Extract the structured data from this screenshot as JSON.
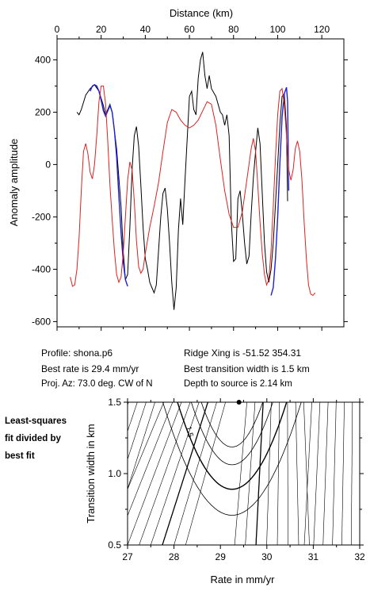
{
  "top_chart": {
    "chart_data": {
      "type": "line",
      "xlabel": "Distance (km)",
      "ylabel": "Anomaly amplitude",
      "xlim": [
        0,
        130
      ],
      "ylim": [
        -620,
        480
      ],
      "x_ticks": [
        0,
        20,
        40,
        60,
        80,
        100,
        120
      ],
      "y_ticks": [
        -600,
        -400,
        -200,
        0,
        200,
        400
      ],
      "x_axis_position": "top",
      "grid": false,
      "series": [
        {
          "color": "#000000",
          "points": [
            [
              9,
              200
            ],
            [
              10,
              190
            ],
            [
              11,
              210
            ],
            [
              13,
              265
            ],
            [
              15,
              290
            ],
            [
              17,
              305
            ],
            [
              19,
              280
            ],
            [
              21,
              225
            ],
            [
              22,
              190
            ],
            [
              23,
              210
            ],
            [
              24,
              230
            ],
            [
              25,
              200
            ],
            [
              27,
              60
            ],
            [
              29,
              -160
            ],
            [
              30,
              -330
            ],
            [
              31,
              -440
            ],
            [
              32,
              -420
            ],
            [
              33,
              -240
            ],
            [
              34,
              -20
            ],
            [
              35,
              110
            ],
            [
              36,
              145
            ],
            [
              37,
              70
            ],
            [
              38,
              -80
            ],
            [
              39,
              -240
            ],
            [
              40,
              -360
            ],
            [
              41,
              -400
            ],
            [
              42,
              -450
            ],
            [
              43,
              -470
            ],
            [
              44,
              -490
            ],
            [
              45,
              -460
            ],
            [
              46,
              -330
            ],
            [
              47,
              -200
            ],
            [
              48,
              -110
            ],
            [
              49,
              -90
            ],
            [
              50,
              -170
            ],
            [
              51,
              -300
            ],
            [
              52,
              -450
            ],
            [
              53,
              -555
            ],
            [
              54,
              -470
            ],
            [
              55,
              -250
            ],
            [
              56,
              -130
            ],
            [
              57,
              -230
            ],
            [
              58,
              -60
            ],
            [
              59,
              100
            ],
            [
              60,
              260
            ],
            [
              61,
              280
            ],
            [
              62,
              210
            ],
            [
              63,
              190
            ],
            [
              64,
              330
            ],
            [
              65,
              400
            ],
            [
              66,
              430
            ],
            [
              67,
              340
            ],
            [
              68,
              290
            ],
            [
              69,
              340
            ],
            [
              70,
              290
            ],
            [
              72,
              260
            ],
            [
              74,
              200
            ],
            [
              75,
              190
            ],
            [
              76,
              150
            ],
            [
              77,
              190
            ],
            [
              78,
              110
            ],
            [
              79,
              -220
            ],
            [
              80,
              -370
            ],
            [
              81,
              -360
            ],
            [
              82,
              -130
            ],
            [
              83,
              -100
            ],
            [
              84,
              -190
            ],
            [
              85,
              -300
            ],
            [
              86,
              -380
            ],
            [
              87,
              -350
            ],
            [
              88,
              -190
            ],
            [
              89,
              -50
            ],
            [
              90,
              50
            ],
            [
              91,
              140
            ],
            [
              92,
              80
            ],
            [
              93,
              -110
            ],
            [
              94,
              -300
            ],
            [
              95,
              -410
            ],
            [
              96,
              -450
            ],
            [
              97,
              -400
            ],
            [
              98,
              -300
            ],
            [
              99,
              -150
            ],
            [
              100,
              0
            ],
            [
              101,
              150
            ],
            [
              102,
              260
            ],
            [
              103,
              270
            ],
            [
              104,
              140
            ],
            [
              104.5,
              -140
            ]
          ]
        },
        {
          "color": "#1f1fd8",
          "points": [
            [
              15,
              280
            ],
            [
              16,
              300
            ],
            [
              17,
              305
            ],
            [
              18,
              300
            ],
            [
              19,
              280
            ],
            [
              20,
              245
            ],
            [
              21,
              205
            ],
            [
              22,
              185
            ],
            [
              23,
              205
            ],
            [
              24,
              225
            ],
            [
              25,
              200
            ],
            [
              26,
              130
            ],
            [
              27,
              30
            ],
            [
              28,
              -120
            ],
            [
              29,
              -260
            ],
            [
              30,
              -370
            ],
            [
              31,
              -440
            ],
            [
              32,
              -465
            ],
            [
              97,
              -500
            ],
            [
              98,
              -470
            ],
            [
              99,
              -360
            ],
            [
              100,
              -200
            ],
            [
              101,
              0
            ],
            [
              102,
              180
            ],
            [
              103,
              270
            ],
            [
              104,
              295
            ],
            [
              104.5,
              240
            ],
            [
              105,
              -100
            ]
          ]
        },
        {
          "color": "#e02020",
          "points": [
            [
              6,
              -430
            ],
            [
              7,
              -465
            ],
            [
              8,
              -460
            ],
            [
              9,
              -400
            ],
            [
              10,
              -280
            ],
            [
              11,
              -100
            ],
            [
              12,
              50
            ],
            [
              13,
              80
            ],
            [
              14,
              40
            ],
            [
              15,
              -30
            ],
            [
              16,
              -55
            ],
            [
              17,
              0
            ],
            [
              18,
              110
            ],
            [
              19,
              240
            ],
            [
              20,
              300
            ],
            [
              21,
              300
            ],
            [
              22,
              230
            ],
            [
              23,
              90
            ],
            [
              24,
              -80
            ],
            [
              25,
              -210
            ],
            [
              26,
              -330
            ],
            [
              27,
              -420
            ],
            [
              28,
              -450
            ],
            [
              29,
              -430
            ],
            [
              30,
              -340
            ],
            [
              31,
              -200
            ],
            [
              32,
              -60
            ],
            [
              33,
              10
            ],
            [
              34,
              -20
            ],
            [
              35,
              -140
            ],
            [
              36,
              -290
            ],
            [
              37,
              -390
            ],
            [
              38,
              -415
            ],
            [
              39,
              -400
            ],
            [
              40,
              -340
            ],
            [
              42,
              -240
            ],
            [
              44,
              -160
            ],
            [
              46,
              -70
            ],
            [
              48,
              50
            ],
            [
              50,
              160
            ],
            [
              52,
              210
            ],
            [
              54,
              200
            ],
            [
              56,
              170
            ],
            [
              58,
              150
            ],
            [
              60,
              140
            ],
            [
              62,
              150
            ],
            [
              64,
              170
            ],
            [
              66,
              205
            ],
            [
              68,
              240
            ],
            [
              70,
              230
            ],
            [
              72,
              150
            ],
            [
              74,
              20
            ],
            [
              76,
              -100
            ],
            [
              78,
              -190
            ],
            [
              80,
              -240
            ],
            [
              82,
              -240
            ],
            [
              84,
              -180
            ],
            [
              86,
              -60
            ],
            [
              88,
              60
            ],
            [
              89,
              100
            ],
            [
              90,
              50
            ],
            [
              91,
              -80
            ],
            [
              92,
              -220
            ],
            [
              93,
              -340
            ],
            [
              94,
              -420
            ],
            [
              95,
              -460
            ],
            [
              96,
              -440
            ],
            [
              97,
              -330
            ],
            [
              98,
              -160
            ],
            [
              99,
              30
            ],
            [
              100,
              190
            ],
            [
              101,
              280
            ],
            [
              102,
              290
            ],
            [
              103,
              230
            ],
            [
              104,
              110
            ],
            [
              105,
              -20
            ],
            [
              106,
              -60
            ],
            [
              107,
              -20
            ],
            [
              108,
              60
            ],
            [
              109,
              90
            ],
            [
              110,
              50
            ],
            [
              111,
              -60
            ],
            [
              112,
              -220
            ],
            [
              113,
              -360
            ],
            [
              114,
              -460
            ],
            [
              115,
              -495
            ],
            [
              116,
              -500
            ],
            [
              117,
              -490
            ]
          ]
        }
      ]
    }
  },
  "info": {
    "profile": "Profile: shona.p6",
    "ridge_xing": "Ridge Xing is -51.52 354.31",
    "best_rate": "Best rate is 29.4 mm/yr",
    "best_transition": "Best transition width is 1.5 km",
    "proj_az": "Proj. Az: 73.0 deg. CW of N",
    "depth": "Depth to source is   2.14 km"
  },
  "side_label": [
    "Least-squares",
    "fit divided by",
    "best fit"
  ],
  "bottom_chart": {
    "chart_data": {
      "type": "contour",
      "xlabel": "Rate in mm/yr",
      "ylabel": "Transition width in km",
      "xlim": [
        27,
        32
      ],
      "ylim": [
        0.5,
        1.5
      ],
      "x_ticks": [
        27,
        28,
        29,
        30,
        31,
        32
      ],
      "y_ticks": [
        0.5,
        1.0,
        1.5
      ],
      "best_fit_point": [
        29.4,
        1.5
      ],
      "contour_label": "1.5",
      "grid": false
    }
  }
}
